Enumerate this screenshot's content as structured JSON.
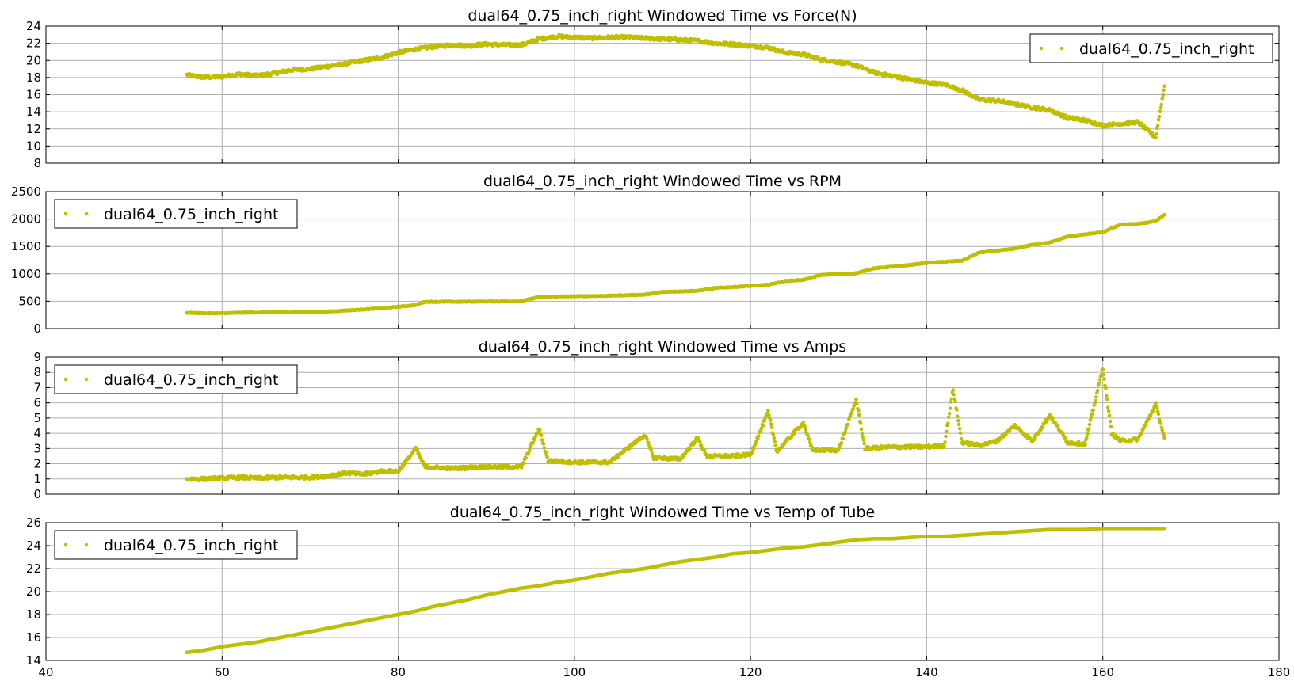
{
  "colors": {
    "series": "#bfbf00",
    "grid": "#b0b0b0",
    "axes": "#000000"
  },
  "x_axis": {
    "min": 40,
    "max": 180,
    "ticks": [
      40,
      60,
      80,
      100,
      120,
      140,
      160,
      180
    ]
  },
  "chart_data": [
    {
      "type": "scatter",
      "title": "dual64_0.75_inch_right Windowed Time vs Force(N)",
      "legend": "top-right",
      "grid": true,
      "xlim": [
        40,
        180
      ],
      "ylim": [
        8,
        24
      ],
      "yticks": [
        8,
        10,
        12,
        14,
        16,
        18,
        20,
        22,
        24
      ],
      "series": [
        {
          "name": "dual64_0.75_inch_right",
          "points": [
            [
              56,
              18.3
            ],
            [
              58,
              18.0
            ],
            [
              60,
              18.1
            ],
            [
              62,
              18.4
            ],
            [
              64,
              18.2
            ],
            [
              66,
              18.5
            ],
            [
              68,
              18.9
            ],
            [
              70,
              19.0
            ],
            [
              72,
              19.3
            ],
            [
              74,
              19.6
            ],
            [
              76,
              20.0
            ],
            [
              78,
              20.3
            ],
            [
              80,
              20.9
            ],
            [
              82,
              21.3
            ],
            [
              84,
              21.6
            ],
            [
              86,
              21.8
            ],
            [
              88,
              21.7
            ],
            [
              90,
              21.9
            ],
            [
              92,
              21.8
            ],
            [
              94,
              21.8
            ],
            [
              96,
              22.5
            ],
            [
              98,
              22.8
            ],
            [
              100,
              22.7
            ],
            [
              102,
              22.6
            ],
            [
              104,
              22.7
            ],
            [
              106,
              22.7
            ],
            [
              108,
              22.6
            ],
            [
              110,
              22.5
            ],
            [
              112,
              22.4
            ],
            [
              114,
              22.3
            ],
            [
              116,
              22.0
            ],
            [
              118,
              21.9
            ],
            [
              120,
              21.7
            ],
            [
              122,
              21.5
            ],
            [
              124,
              20.9
            ],
            [
              126,
              20.7
            ],
            [
              128,
              20.1
            ],
            [
              130,
              19.8
            ],
            [
              132,
              19.4
            ],
            [
              134,
              18.6
            ],
            [
              136,
              18.2
            ],
            [
              138,
              17.8
            ],
            [
              140,
              17.4
            ],
            [
              142,
              17.2
            ],
            [
              144,
              16.5
            ],
            [
              146,
              15.4
            ],
            [
              148,
              15.3
            ],
            [
              150,
              14.9
            ],
            [
              152,
              14.5
            ],
            [
              154,
              14.2
            ],
            [
              156,
              13.3
            ],
            [
              158,
              13.0
            ],
            [
              160,
              12.4
            ],
            [
              162,
              12.6
            ],
            [
              164,
              12.8
            ],
            [
              166,
              11.0
            ],
            [
              167,
              17.0
            ]
          ]
        }
      ]
    },
    {
      "type": "scatter",
      "title": "dual64_0.75_inch_right Windowed Time vs RPM",
      "legend": "top-left",
      "grid": true,
      "xlim": [
        40,
        180
      ],
      "ylim": [
        0,
        2500
      ],
      "yticks": [
        0,
        500,
        1000,
        1500,
        2000,
        2500
      ],
      "series": [
        {
          "name": "dual64_0.75_inch_right",
          "points": [
            [
              56,
              290
            ],
            [
              58,
              280
            ],
            [
              60,
              280
            ],
            [
              62,
              290
            ],
            [
              64,
              295
            ],
            [
              66,
              300
            ],
            [
              68,
              300
            ],
            [
              70,
              305
            ],
            [
              72,
              310
            ],
            [
              74,
              330
            ],
            [
              76,
              350
            ],
            [
              78,
              370
            ],
            [
              80,
              400
            ],
            [
              82,
              430
            ],
            [
              83,
              490
            ],
            [
              86,
              490
            ],
            [
              90,
              495
            ],
            [
              94,
              500
            ],
            [
              96,
              580
            ],
            [
              100,
              590
            ],
            [
              104,
              600
            ],
            [
              108,
              620
            ],
            [
              110,
              670
            ],
            [
              114,
              690
            ],
            [
              116,
              740
            ],
            [
              120,
              780
            ],
            [
              122,
              800
            ],
            [
              124,
              870
            ],
            [
              126,
              890
            ],
            [
              128,
              980
            ],
            [
              132,
              1010
            ],
            [
              134,
              1100
            ],
            [
              138,
              1160
            ],
            [
              140,
              1200
            ],
            [
              142,
              1220
            ],
            [
              144,
              1240
            ],
            [
              146,
              1390
            ],
            [
              148,
              1420
            ],
            [
              150,
              1460
            ],
            [
              152,
              1530
            ],
            [
              154,
              1570
            ],
            [
              156,
              1680
            ],
            [
              158,
              1720
            ],
            [
              160,
              1760
            ],
            [
              162,
              1900
            ],
            [
              164,
              1910
            ],
            [
              166,
              1960
            ],
            [
              167,
              2080
            ]
          ]
        }
      ]
    },
    {
      "type": "scatter",
      "title": "dual64_0.75_inch_right Windowed Time vs Amps",
      "legend": "top-left",
      "grid": true,
      "xlim": [
        40,
        180
      ],
      "ylim": [
        0,
        9
      ],
      "yticks": [
        0,
        1,
        2,
        3,
        4,
        5,
        6,
        7,
        8,
        9
      ],
      "series": [
        {
          "name": "dual64_0.75_inch_right",
          "points": [
            [
              56,
              1.0
            ],
            [
              58,
              1.0
            ],
            [
              60,
              1.05
            ],
            [
              62,
              1.1
            ],
            [
              64,
              1.05
            ],
            [
              66,
              1.1
            ],
            [
              68,
              1.1
            ],
            [
              70,
              1.1
            ],
            [
              72,
              1.2
            ],
            [
              74,
              1.4
            ],
            [
              76,
              1.3
            ],
            [
              78,
              1.5
            ],
            [
              80,
              1.5
            ],
            [
              82,
              3.0
            ],
            [
              83,
              1.8
            ],
            [
              86,
              1.7
            ],
            [
              90,
              1.8
            ],
            [
              94,
              1.8
            ],
            [
              96,
              4.3
            ],
            [
              97,
              2.2
            ],
            [
              100,
              2.1
            ],
            [
              104,
              2.1
            ],
            [
              108,
              3.9
            ],
            [
              109,
              2.4
            ],
            [
              112,
              2.3
            ],
            [
              114,
              3.7
            ],
            [
              115,
              2.5
            ],
            [
              118,
              2.5
            ],
            [
              120,
              2.6
            ],
            [
              122,
              5.4
            ],
            [
              123,
              2.8
            ],
            [
              126,
              4.7
            ],
            [
              127,
              2.9
            ],
            [
              130,
              2.9
            ],
            [
              132,
              6.2
            ],
            [
              133,
              3.0
            ],
            [
              136,
              3.1
            ],
            [
              140,
              3.1
            ],
            [
              142,
              3.2
            ],
            [
              143,
              6.9
            ],
            [
              144,
              3.4
            ],
            [
              146,
              3.2
            ],
            [
              148,
              3.5
            ],
            [
              150,
              4.5
            ],
            [
              152,
              3.5
            ],
            [
              154,
              5.2
            ],
            [
              156,
              3.4
            ],
            [
              158,
              3.3
            ],
            [
              160,
              8.3
            ],
            [
              161,
              4.0
            ],
            [
              162,
              3.5
            ],
            [
              164,
              3.6
            ],
            [
              166,
              5.9
            ],
            [
              167,
              3.7
            ]
          ]
        }
      ]
    },
    {
      "type": "scatter",
      "title": "dual64_0.75_inch_right Windowed Time vs Temp of Tube",
      "legend": "top-left",
      "grid": true,
      "xlim": [
        40,
        180
      ],
      "ylim": [
        14,
        26
      ],
      "yticks": [
        14,
        16,
        18,
        20,
        22,
        24,
        26
      ],
      "series": [
        {
          "name": "dual64_0.75_inch_right",
          "points": [
            [
              56,
              14.7
            ],
            [
              58,
              14.9
            ],
            [
              60,
              15.2
            ],
            [
              62,
              15.4
            ],
            [
              64,
              15.6
            ],
            [
              66,
              15.9
            ],
            [
              68,
              16.2
            ],
            [
              70,
              16.5
            ],
            [
              72,
              16.8
            ],
            [
              74,
              17.1
            ],
            [
              76,
              17.4
            ],
            [
              78,
              17.7
            ],
            [
              80,
              18.0
            ],
            [
              82,
              18.3
            ],
            [
              84,
              18.7
            ],
            [
              86,
              19.0
            ],
            [
              88,
              19.3
            ],
            [
              90,
              19.7
            ],
            [
              92,
              20.0
            ],
            [
              94,
              20.3
            ],
            [
              96,
              20.5
            ],
            [
              98,
              20.8
            ],
            [
              100,
              21.0
            ],
            [
              102,
              21.3
            ],
            [
              104,
              21.6
            ],
            [
              106,
              21.8
            ],
            [
              108,
              22.0
            ],
            [
              110,
              22.3
            ],
            [
              112,
              22.6
            ],
            [
              114,
              22.8
            ],
            [
              116,
              23.0
            ],
            [
              118,
              23.3
            ],
            [
              120,
              23.4
            ],
            [
              122,
              23.6
            ],
            [
              124,
              23.8
            ],
            [
              126,
              23.9
            ],
            [
              128,
              24.1
            ],
            [
              130,
              24.3
            ],
            [
              132,
              24.5
            ],
            [
              134,
              24.6
            ],
            [
              136,
              24.6
            ],
            [
              138,
              24.7
            ],
            [
              140,
              24.8
            ],
            [
              142,
              24.8
            ],
            [
              144,
              24.9
            ],
            [
              146,
              25.0
            ],
            [
              148,
              25.1
            ],
            [
              150,
              25.2
            ],
            [
              152,
              25.3
            ],
            [
              154,
              25.4
            ],
            [
              156,
              25.4
            ],
            [
              158,
              25.4
            ],
            [
              160,
              25.5
            ],
            [
              162,
              25.5
            ],
            [
              164,
              25.5
            ],
            [
              166,
              25.5
            ],
            [
              167,
              25.5
            ]
          ]
        }
      ]
    }
  ]
}
